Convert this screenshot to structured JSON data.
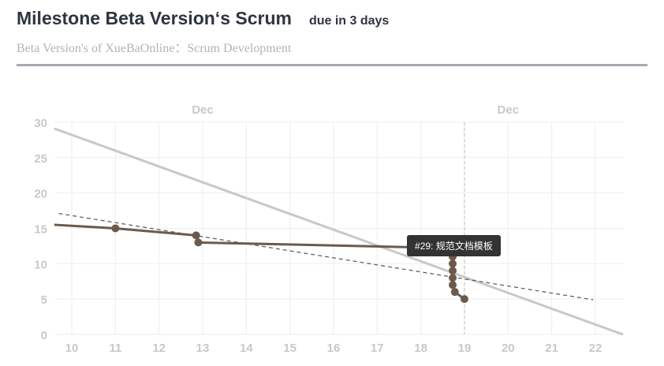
{
  "header": {
    "title": "Milestone Beta Version‘s Scrum",
    "due": "due in 3 days",
    "subtitle": "Beta Version's of XueBaOnline：Scrum Development"
  },
  "chart_data": {
    "type": "line",
    "xlim": [
      9.6,
      22.7
    ],
    "ylim": [
      0,
      30
    ],
    "x_ticks": [
      10,
      11,
      12,
      13,
      14,
      15,
      16,
      17,
      18,
      19,
      20,
      21,
      22
    ],
    "y_ticks": [
      0,
      5,
      10,
      15,
      20,
      25,
      30
    ],
    "month_labels": [
      {
        "x": 13,
        "label": "Dec"
      },
      {
        "x": 20,
        "label": "Dec"
      }
    ],
    "grid": true,
    "today_x": 19,
    "series": [
      {
        "type": "ideal",
        "color": "#c8c8c8",
        "points": [
          [
            9.6,
            29.1
          ],
          [
            22.63,
            0
          ]
        ]
      },
      {
        "type": "trend",
        "color": "#555555",
        "dashed": true,
        "points": [
          [
            9.7,
            17.1
          ],
          [
            21.95,
            4.9
          ]
        ]
      },
      {
        "type": "actual",
        "color": "#6b5a4c",
        "line": [
          [
            9.6,
            15.5
          ],
          [
            11,
            15
          ],
          [
            12.85,
            14
          ],
          [
            12.9,
            13
          ],
          [
            18.73,
            12.2
          ],
          [
            18.73,
            11
          ],
          [
            18.73,
            10
          ],
          [
            18.73,
            9
          ],
          [
            18.73,
            8
          ],
          [
            18.73,
            7
          ],
          [
            18.78,
            6
          ],
          [
            19,
            5
          ]
        ],
        "markers": [
          [
            11,
            15
          ],
          [
            12.85,
            14
          ],
          [
            12.9,
            13
          ],
          [
            18.73,
            11
          ],
          [
            18.73,
            10
          ],
          [
            18.73,
            9
          ],
          [
            18.73,
            8
          ],
          [
            18.73,
            7
          ],
          [
            18.78,
            6
          ],
          [
            19,
            5
          ]
        ]
      }
    ],
    "tooltip": {
      "x": 18.73,
      "y": 11,
      "text": "#29: 规范文档模板"
    }
  }
}
